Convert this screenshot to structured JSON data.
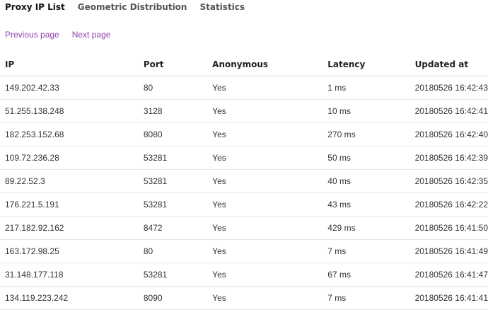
{
  "tabs": [
    {
      "label": "Proxy IP List",
      "active": true
    },
    {
      "label": "Geometric Distribution",
      "active": false
    },
    {
      "label": "Statistics",
      "active": false
    }
  ],
  "pager": {
    "previous": "Previous page",
    "next": "Next page"
  },
  "colors": {
    "link": "#8e44ad"
  },
  "table": {
    "headers": [
      "IP",
      "Port",
      "Anonymous",
      "Latency",
      "Updated at"
    ],
    "rows": [
      [
        "149.202.42.33",
        "80",
        "Yes",
        "1 ms",
        "20180526 16:42:43"
      ],
      [
        "51.255.138.248",
        "3128",
        "Yes",
        "10 ms",
        "20180526 16:42:41"
      ],
      [
        "182.253.152.68",
        "8080",
        "Yes",
        "270 ms",
        "20180526 16:42:40"
      ],
      [
        "109.72.236.28",
        "53281",
        "Yes",
        "50 ms",
        "20180526 16:42:39"
      ],
      [
        "89.22.52.3",
        "53281",
        "Yes",
        "40 ms",
        "20180526 16:42:35"
      ],
      [
        "176.221.5.191",
        "53281",
        "Yes",
        "43 ms",
        "20180526 16:42:22"
      ],
      [
        "217.182.92.162",
        "8472",
        "Yes",
        "429 ms",
        "20180526 16:41:50"
      ],
      [
        "163.172.98.25",
        "80",
        "Yes",
        "7 ms",
        "20180526 16:41:49"
      ],
      [
        "31.148.177.118",
        "53281",
        "Yes",
        "67 ms",
        "20180526 16:41:47"
      ],
      [
        "134.119.223.242",
        "8090",
        "Yes",
        "7 ms",
        "20180526 16:41:41"
      ]
    ]
  }
}
